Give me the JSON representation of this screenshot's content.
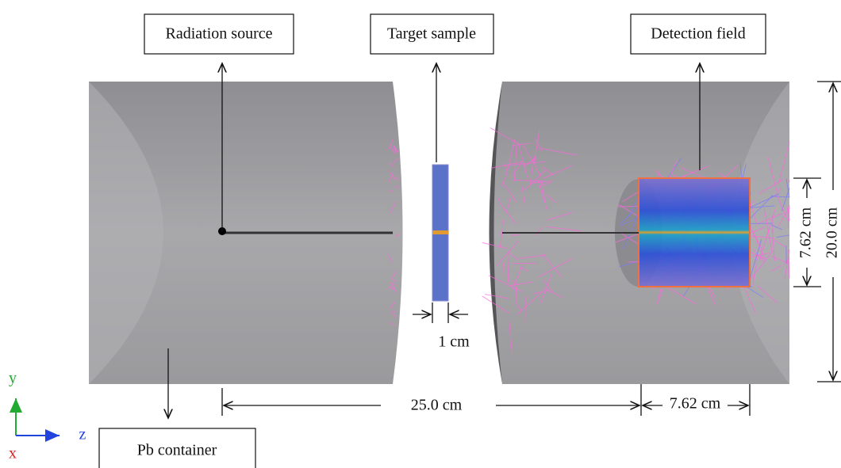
{
  "labels": {
    "radiation_source": "Radiation source",
    "target_sample": "Target sample",
    "detection_field": "Detection field",
    "pb_container": "Pb container"
  },
  "dimensions": {
    "sample_thickness": "1 cm",
    "source_to_detector": "25.0 cm",
    "detector_length": "7.62 cm",
    "detector_diameter": "7.62 cm",
    "container_diameter": "20.0 cm"
  },
  "axes": {
    "x": "x",
    "y": "y",
    "z": "z"
  }
}
